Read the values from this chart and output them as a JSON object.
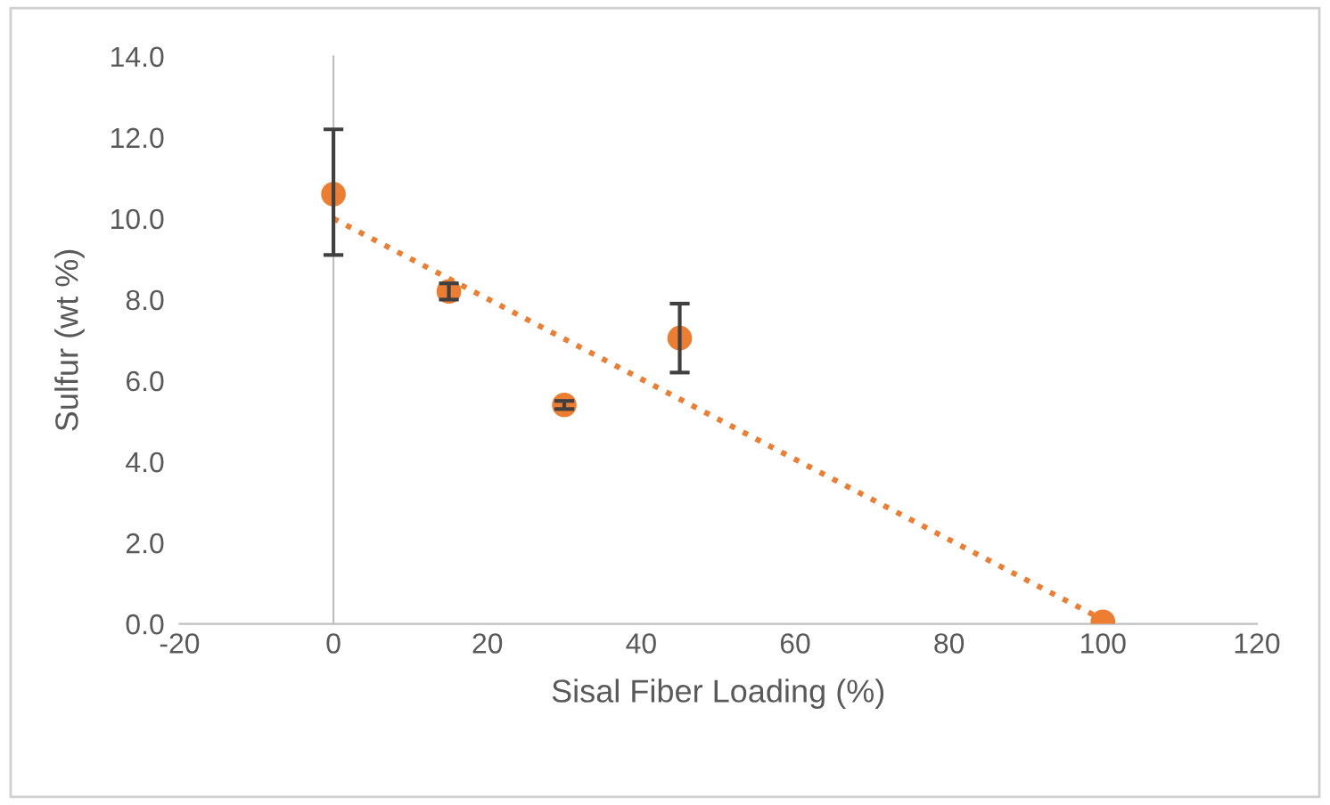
{
  "chart_data": {
    "type": "scatter",
    "xlabel": "Sisal Fiber Loading (%)",
    "ylabel": "Sulfur (wt %)",
    "x": [
      0,
      15,
      30,
      45,
      100
    ],
    "series": [
      {
        "type": "scatter",
        "color": "#ed7d31",
        "values": [
          10.6,
          8.2,
          5.4,
          7.05,
          0.05
        ],
        "errors": [
          [
            9.1,
            12.2
          ],
          [
            8.0,
            8.4
          ],
          [
            5.3,
            5.5
          ],
          [
            6.2,
            7.9
          ],
          null
        ],
        "marker": "circle"
      },
      {
        "type": "line",
        "color": "#ed7d31",
        "x": [
          0,
          100
        ],
        "values": [
          10.0,
          0.1
        ],
        "line_style": "dotted",
        "marker": "none"
      }
    ],
    "xlim": [
      -20,
      120
    ],
    "xticks": [
      -20,
      0,
      20,
      40,
      60,
      80,
      100,
      120
    ],
    "ylim": [
      0,
      14
    ],
    "yticks": [
      {
        "value": 0,
        "label": "0.0"
      },
      {
        "value": 2,
        "label": "2.0"
      },
      {
        "value": 4,
        "label": "4.0"
      },
      {
        "value": 6,
        "label": "6.0"
      },
      {
        "value": 8,
        "label": "8.0"
      },
      {
        "value": 10,
        "label": "10.0"
      },
      {
        "value": 12,
        "label": "12.0"
      },
      {
        "value": 14,
        "label": "14.0"
      }
    ],
    "legend": false
  }
}
